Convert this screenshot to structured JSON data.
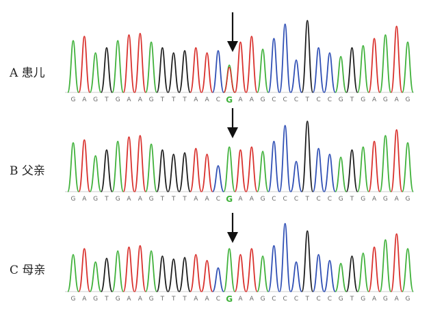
{
  "sequence": "GAGTGAAGTTTAACGAAGCCCTCCGTGAGAG",
  "highlight_index": 14,
  "base_colors": {
    "A": "#d9302c",
    "G": "#3fb13a",
    "T": "#1d1d1d",
    "C": "#2f4fb5"
  },
  "highlight_color": "#3fb13a",
  "panels": [
    {
      "label": "A 患儿",
      "peaks": [
        0.72,
        0.78,
        0.55,
        0.62,
        0.72,
        0.8,
        0.82,
        0.7,
        0.62,
        0.55,
        0.58,
        0.62,
        0.55,
        0.58,
        0.38,
        0.7,
        0.78,
        0.6,
        0.75,
        0.95,
        0.45,
        1.0,
        0.62,
        0.55,
        0.5,
        0.62,
        0.65,
        0.75,
        0.8,
        0.92,
        0.7
      ],
      "mix": [
        0,
        0,
        0,
        0,
        0,
        0,
        0,
        0,
        0,
        0,
        0,
        0,
        0,
        0,
        0.35,
        0,
        0,
        0,
        0,
        0,
        0,
        0,
        0,
        0,
        0,
        0,
        0,
        0,
        0,
        0,
        0
      ]
    },
    {
      "label": "B 父亲",
      "peaks": [
        0.68,
        0.72,
        0.5,
        0.58,
        0.7,
        0.76,
        0.78,
        0.66,
        0.58,
        0.52,
        0.54,
        0.6,
        0.52,
        0.36,
        0.62,
        0.58,
        0.62,
        0.56,
        0.7,
        0.92,
        0.42,
        0.98,
        0.6,
        0.52,
        0.48,
        0.58,
        0.62,
        0.7,
        0.78,
        0.86,
        0.68
      ],
      "mix": [
        0,
        0,
        0,
        0,
        0,
        0,
        0,
        0,
        0,
        0,
        0,
        0,
        0,
        0,
        0,
        0,
        0,
        0,
        0,
        0,
        0,
        0,
        0,
        0,
        0,
        0,
        0,
        0,
        0,
        0,
        0
      ]
    },
    {
      "label": "C 母亲",
      "peaks": [
        0.5,
        0.58,
        0.4,
        0.45,
        0.55,
        0.6,
        0.62,
        0.55,
        0.48,
        0.44,
        0.46,
        0.5,
        0.42,
        0.32,
        0.58,
        0.5,
        0.58,
        0.48,
        0.62,
        0.92,
        0.4,
        0.82,
        0.5,
        0.42,
        0.38,
        0.48,
        0.52,
        0.6,
        0.7,
        0.78,
        0.58
      ],
      "mix": [
        0,
        0,
        0,
        0,
        0,
        0,
        0,
        0,
        0,
        0,
        0,
        0,
        0,
        0,
        0,
        0,
        0,
        0,
        0,
        0,
        0,
        0,
        0,
        0,
        0,
        0,
        0,
        0,
        0,
        0,
        0
      ]
    }
  ]
}
